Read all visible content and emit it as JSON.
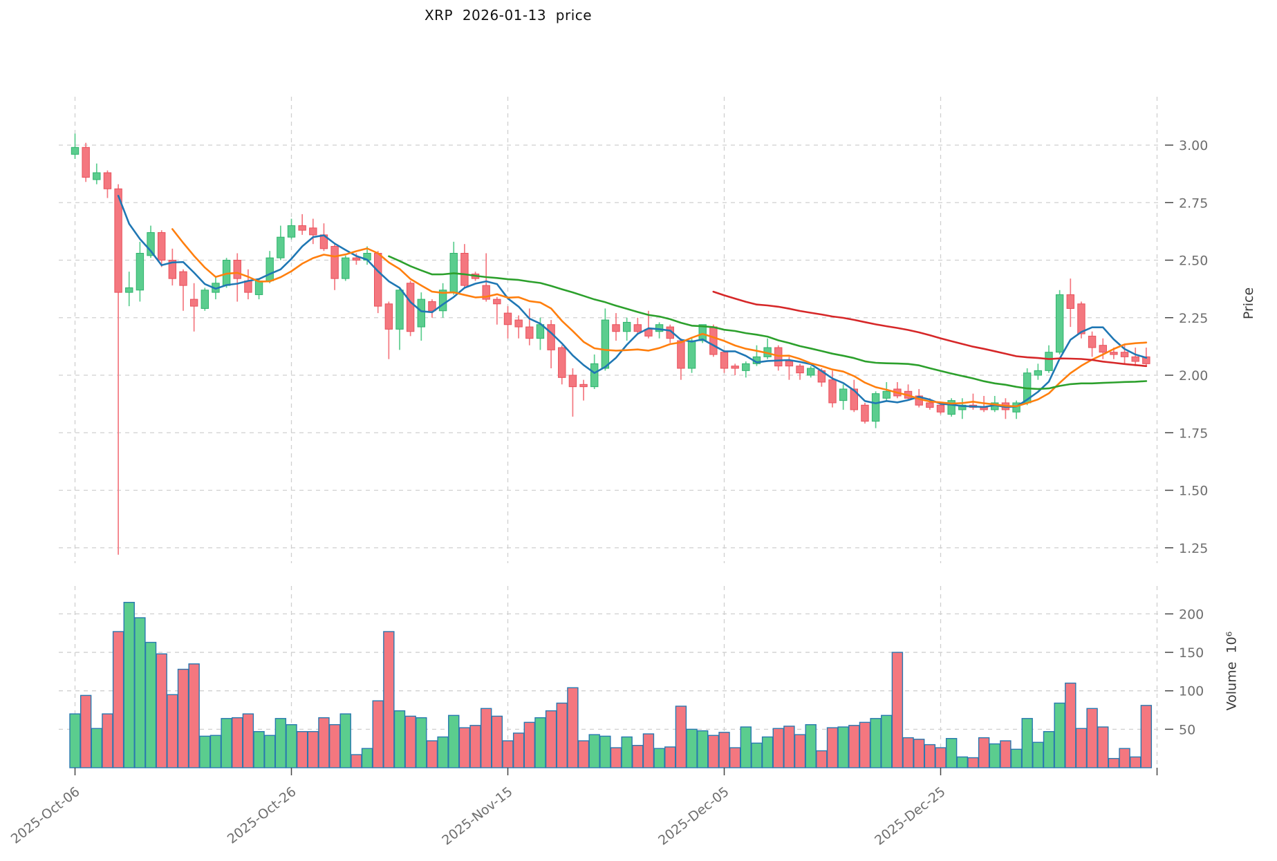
{
  "title": "XRP  2026-01-13  price",
  "axes": {
    "price_axis_label": "Price",
    "volume_axis_label": "Volume  10⁶"
  },
  "colors": {
    "up": "#5BCD8E",
    "up_edge": "#2FB36D",
    "down": "#F4777F",
    "down_edge": "#E8505B",
    "volume_bar_edge": "#2878B0",
    "grid": "#CFCFCF",
    "tick_label": "#6e6e6e",
    "tick_mark": "#444444",
    "title": "#111111",
    "ma_colors": [
      "#1f77b4",
      "#ff7f0e",
      "#2ca02c",
      "#d62728"
    ]
  },
  "chart_data": {
    "type": "candlestick+volume",
    "title": "XRP  2026-01-13  price",
    "ylabel_price": "Price",
    "ylabel_volume": "Volume  10⁶",
    "grid": "dashed",
    "x_start_date": "2025-10-06",
    "x_end_date": "2026-01-13",
    "x_ticks": [
      {
        "i": 0,
        "label": "2025-Oct-06"
      },
      {
        "i": 20,
        "label": "2025-Oct-26"
      },
      {
        "i": 40,
        "label": "2025-Nov-15"
      },
      {
        "i": 60,
        "label": "2025-Dec-05"
      },
      {
        "i": 80,
        "label": "2025-Dec-25"
      },
      {
        "i": 100,
        "label": ""
      }
    ],
    "price_ticks": [
      {
        "value": 3.0,
        "label": "3.00"
      },
      {
        "value": 2.75,
        "label": "2.75"
      },
      {
        "value": 2.5,
        "label": "2.50"
      },
      {
        "value": 2.25,
        "label": "2.25"
      },
      {
        "value": 2.0,
        "label": "2.00"
      },
      {
        "value": 1.75,
        "label": "1.75"
      },
      {
        "value": 1.5,
        "label": "1.50"
      },
      {
        "value": 1.25,
        "label": "1.25"
      }
    ],
    "volume_ticks": [
      {
        "value": 200,
        "label": "200"
      },
      {
        "value": 150,
        "label": "150"
      },
      {
        "value": 100,
        "label": "100"
      },
      {
        "value": 50,
        "label": "50"
      }
    ],
    "price_range_shown": [
      1.15,
      3.1
    ],
    "volume_unit": "millions",
    "moving_averages": [
      {
        "name": "MA5",
        "window": 5,
        "color": "#1f77b4"
      },
      {
        "name": "MA10",
        "window": 10,
        "color": "#ff7f0e"
      },
      {
        "name": "MA30",
        "window": 30,
        "color": "#2ca02c"
      },
      {
        "name": "MA60",
        "window": 60,
        "color": "#d62728"
      }
    ],
    "candle_fields": [
      "open",
      "high",
      "low",
      "close",
      "volume_millions"
    ],
    "candles": [
      [
        2.96,
        3.05,
        2.94,
        2.99,
        70
      ],
      [
        2.99,
        3.01,
        2.84,
        2.86,
        94
      ],
      [
        2.85,
        2.92,
        2.83,
        2.88,
        51
      ],
      [
        2.88,
        2.89,
        2.77,
        2.81,
        70
      ],
      [
        2.81,
        2.83,
        1.22,
        2.36,
        177
      ],
      [
        2.36,
        2.45,
        2.3,
        2.38,
        215
      ],
      [
        2.37,
        2.58,
        2.32,
        2.53,
        195
      ],
      [
        2.52,
        2.65,
        2.51,
        2.62,
        163
      ],
      [
        2.62,
        2.63,
        2.47,
        2.5,
        148
      ],
      [
        2.5,
        2.55,
        2.39,
        2.42,
        95
      ],
      [
        2.45,
        2.46,
        2.28,
        2.39,
        128
      ],
      [
        2.33,
        2.4,
        2.19,
        2.3,
        135
      ],
      [
        2.29,
        2.38,
        2.28,
        2.37,
        41
      ],
      [
        2.36,
        2.43,
        2.33,
        2.4,
        42
      ],
      [
        2.39,
        2.51,
        2.38,
        2.5,
        64
      ],
      [
        2.5,
        2.53,
        2.32,
        2.42,
        65
      ],
      [
        2.41,
        2.46,
        2.33,
        2.36,
        70
      ],
      [
        2.35,
        2.42,
        2.33,
        2.41,
        47
      ],
      [
        2.41,
        2.54,
        2.4,
        2.51,
        42
      ],
      [
        2.51,
        2.65,
        2.5,
        2.6,
        64
      ],
      [
        2.6,
        2.68,
        2.59,
        2.65,
        56
      ],
      [
        2.65,
        2.7,
        2.61,
        2.63,
        47
      ],
      [
        2.64,
        2.68,
        2.57,
        2.61,
        47
      ],
      [
        2.61,
        2.66,
        2.54,
        2.55,
        65
      ],
      [
        2.56,
        2.57,
        2.37,
        2.42,
        56
      ],
      [
        2.42,
        2.52,
        2.41,
        2.51,
        70
      ],
      [
        2.51,
        2.53,
        2.48,
        2.5,
        17
      ],
      [
        2.5,
        2.56,
        2.48,
        2.53,
        25
      ],
      [
        2.53,
        2.54,
        2.27,
        2.3,
        87
      ],
      [
        2.31,
        2.32,
        2.07,
        2.2,
        177
      ],
      [
        2.2,
        2.38,
        2.11,
        2.37,
        74
      ],
      [
        2.4,
        2.41,
        2.17,
        2.19,
        67
      ],
      [
        2.21,
        2.36,
        2.15,
        2.33,
        65
      ],
      [
        2.32,
        2.33,
        2.25,
        2.28,
        35
      ],
      [
        2.28,
        2.4,
        2.25,
        2.37,
        40
      ],
      [
        2.36,
        2.58,
        2.35,
        2.53,
        68
      ],
      [
        2.53,
        2.57,
        2.38,
        2.39,
        52
      ],
      [
        2.44,
        2.45,
        2.41,
        2.42,
        55
      ],
      [
        2.39,
        2.53,
        2.32,
        2.33,
        77
      ],
      [
        2.33,
        2.34,
        2.22,
        2.31,
        67
      ],
      [
        2.27,
        2.3,
        2.16,
        2.22,
        35
      ],
      [
        2.24,
        2.26,
        2.16,
        2.21,
        45
      ],
      [
        2.21,
        2.29,
        2.13,
        2.16,
        59
      ],
      [
        2.16,
        2.25,
        2.11,
        2.22,
        65
      ],
      [
        2.22,
        2.24,
        2.03,
        2.11,
        74
      ],
      [
        2.12,
        2.13,
        1.96,
        1.99,
        84
      ],
      [
        2.0,
        2.03,
        1.82,
        1.95,
        104
      ],
      [
        1.96,
        1.98,
        1.89,
        1.95,
        35
      ],
      [
        1.95,
        2.09,
        1.94,
        2.05,
        43
      ],
      [
        2.03,
        2.29,
        2.02,
        2.24,
        41
      ],
      [
        2.22,
        2.27,
        2.15,
        2.19,
        26
      ],
      [
        2.19,
        2.25,
        2.15,
        2.23,
        40
      ],
      [
        2.22,
        2.25,
        2.18,
        2.19,
        29
      ],
      [
        2.2,
        2.28,
        2.16,
        2.17,
        44
      ],
      [
        2.19,
        2.23,
        2.16,
        2.22,
        25
      ],
      [
        2.21,
        2.22,
        2.14,
        2.16,
        27
      ],
      [
        2.15,
        2.16,
        1.98,
        2.03,
        80
      ],
      [
        2.03,
        2.16,
        2.01,
        2.15,
        50
      ],
      [
        2.15,
        2.22,
        2.14,
        2.22,
        48
      ],
      [
        2.21,
        2.22,
        2.08,
        2.09,
        42
      ],
      [
        2.1,
        2.11,
        2.01,
        2.03,
        46
      ],
      [
        2.04,
        2.05,
        2.0,
        2.03,
        26
      ],
      [
        2.02,
        2.06,
        1.99,
        2.05,
        53
      ],
      [
        2.05,
        2.13,
        2.04,
        2.08,
        32
      ],
      [
        2.08,
        2.16,
        2.07,
        2.12,
        40
      ],
      [
        2.12,
        2.13,
        2.02,
        2.04,
        51
      ],
      [
        2.06,
        2.08,
        1.98,
        2.04,
        54
      ],
      [
        2.04,
        2.05,
        1.98,
        2.01,
        43
      ],
      [
        2.0,
        2.04,
        1.99,
        2.03,
        56
      ],
      [
        2.02,
        2.03,
        1.95,
        1.97,
        22
      ],
      [
        1.98,
        2.02,
        1.86,
        1.88,
        52
      ],
      [
        1.89,
        1.96,
        1.85,
        1.94,
        53
      ],
      [
        1.94,
        1.98,
        1.84,
        1.85,
        55
      ],
      [
        1.87,
        1.88,
        1.79,
        1.8,
        59
      ],
      [
        1.8,
        1.93,
        1.77,
        1.92,
        64
      ],
      [
        1.9,
        1.97,
        1.89,
        1.93,
        68
      ],
      [
        1.94,
        1.97,
        1.9,
        1.91,
        150
      ],
      [
        1.93,
        1.96,
        1.89,
        1.9,
        39
      ],
      [
        1.91,
        1.94,
        1.86,
        1.87,
        37
      ],
      [
        1.88,
        1.9,
        1.85,
        1.86,
        30
      ],
      [
        1.87,
        1.88,
        1.83,
        1.84,
        26
      ],
      [
        1.83,
        1.9,
        1.82,
        1.89,
        38
      ],
      [
        1.85,
        1.9,
        1.81,
        1.87,
        14
      ],
      [
        1.87,
        1.92,
        1.85,
        1.86,
        13
      ],
      [
        1.86,
        1.91,
        1.84,
        1.85,
        39
      ],
      [
        1.85,
        1.91,
        1.84,
        1.88,
        31
      ],
      [
        1.88,
        1.9,
        1.81,
        1.85,
        35
      ],
      [
        1.84,
        1.89,
        1.81,
        1.88,
        24
      ],
      [
        1.88,
        2.03,
        1.87,
        2.01,
        64
      ],
      [
        2.0,
        2.05,
        1.98,
        2.02,
        33
      ],
      [
        2.02,
        2.13,
        2.01,
        2.1,
        47
      ],
      [
        2.1,
        2.37,
        2.09,
        2.35,
        84
      ],
      [
        2.35,
        2.42,
        2.21,
        2.29,
        110
      ],
      [
        2.31,
        2.32,
        2.16,
        2.18,
        51
      ],
      [
        2.17,
        2.19,
        2.08,
        2.12,
        77
      ],
      [
        2.13,
        2.16,
        2.07,
        2.1,
        53
      ],
      [
        2.1,
        2.12,
        2.07,
        2.09,
        12
      ],
      [
        2.1,
        2.13,
        2.05,
        2.08,
        25
      ],
      [
        2.08,
        2.12,
        2.04,
        2.06,
        14
      ],
      [
        2.08,
        2.12,
        2.04,
        2.05,
        81
      ]
    ]
  }
}
